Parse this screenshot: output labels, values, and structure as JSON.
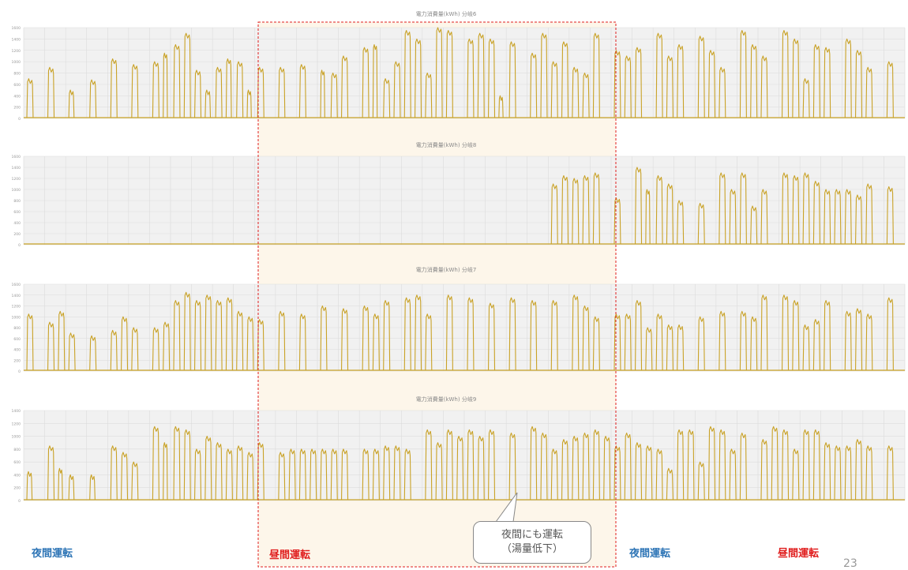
{
  "colors": {
    "series": "#c9a227",
    "night": "#2e75b6",
    "day": "#e01e1e",
    "highlight_border": "#e01e1e",
    "highlight_fill": "#fdf6ea",
    "plot_bg": "#f1f1f1",
    "grid": "#dcdcdc"
  },
  "chart_data": [
    {
      "type": "area",
      "title": "電力消費量(kWh) 分岐6",
      "ylim": [
        0,
        1600
      ],
      "yticks": [
        0,
        200,
        400,
        600,
        800,
        1000,
        1200,
        1400,
        1600
      ],
      "pulses": [
        [
          0.0,
          0.3,
          700
        ],
        [
          1.0,
          0.3,
          900
        ],
        [
          2.0,
          0.25,
          500
        ],
        [
          3.0,
          0.3,
          680
        ],
        [
          4.0,
          0.3,
          1050
        ],
        [
          5.0,
          0.3,
          950
        ],
        [
          6.0,
          0.3,
          1000
        ],
        [
          6.5,
          0.2,
          1150
        ],
        [
          7.0,
          0.3,
          1300
        ],
        [
          7.5,
          0.3,
          1500
        ],
        [
          8.0,
          0.3,
          850
        ],
        [
          8.5,
          0.25,
          500
        ],
        [
          9.0,
          0.3,
          900
        ],
        [
          9.5,
          0.25,
          1050
        ],
        [
          10.0,
          0.3,
          1000
        ],
        [
          10.5,
          0.2,
          500
        ],
        [
          11.0,
          0.3,
          900
        ],
        [
          12.0,
          0.3,
          900
        ],
        [
          13.0,
          0.3,
          950
        ],
        [
          14.0,
          0.2,
          850
        ],
        [
          14.5,
          0.3,
          800
        ],
        [
          15.0,
          0.3,
          1100
        ],
        [
          16.0,
          0.3,
          1250
        ],
        [
          16.5,
          0.2,
          1300
        ],
        [
          17.0,
          0.3,
          700
        ],
        [
          17.5,
          0.3,
          1000
        ],
        [
          18.0,
          0.3,
          1550
        ],
        [
          18.5,
          0.3,
          1400
        ],
        [
          19.0,
          0.3,
          800
        ],
        [
          19.5,
          0.3,
          1600
        ],
        [
          20.0,
          0.3,
          1550
        ],
        [
          21.0,
          0.3,
          1400
        ],
        [
          21.5,
          0.3,
          1500
        ],
        [
          22.0,
          0.3,
          1400
        ],
        [
          22.5,
          0.2,
          400
        ],
        [
          23.0,
          0.3,
          1350
        ],
        [
          24.0,
          0.3,
          1150
        ],
        [
          24.5,
          0.3,
          1500
        ],
        [
          25.0,
          0.3,
          1000
        ],
        [
          25.5,
          0.3,
          1350
        ],
        [
          26.0,
          0.3,
          900
        ],
        [
          26.5,
          0.3,
          800
        ],
        [
          27.0,
          0.3,
          1500
        ],
        [
          28.0,
          0.3,
          1200
        ],
        [
          28.5,
          0.3,
          1100
        ],
        [
          29.0,
          0.3,
          1250
        ],
        [
          30.0,
          0.3,
          1500
        ],
        [
          30.5,
          0.3,
          1100
        ],
        [
          31.0,
          0.3,
          1300
        ],
        [
          32.0,
          0.3,
          1450
        ],
        [
          32.5,
          0.3,
          1200
        ],
        [
          33.0,
          0.3,
          900
        ],
        [
          34.0,
          0.3,
          1550
        ],
        [
          34.5,
          0.3,
          1300
        ],
        [
          35.0,
          0.3,
          1100
        ],
        [
          36.0,
          0.3,
          1550
        ],
        [
          36.5,
          0.3,
          1400
        ],
        [
          37.0,
          0.3,
          700
        ],
        [
          37.5,
          0.3,
          1300
        ],
        [
          38.0,
          0.3,
          1250
        ],
        [
          39.0,
          0.3,
          1400
        ],
        [
          39.5,
          0.3,
          1200
        ],
        [
          40.0,
          0.3,
          900
        ],
        [
          41.0,
          0.3,
          1000
        ]
      ]
    },
    {
      "type": "area",
      "title": "電力消費量(kWh) 分岐8",
      "ylim": [
        0,
        1600
      ],
      "yticks": [
        0,
        200,
        400,
        600,
        800,
        1000,
        1200,
        1400,
        1600
      ],
      "pulses": [
        [
          25.0,
          0.3,
          1100
        ],
        [
          25.5,
          0.3,
          1250
        ],
        [
          26.0,
          0.3,
          1200
        ],
        [
          26.5,
          0.3,
          1250
        ],
        [
          27.0,
          0.3,
          1300
        ],
        [
          28.0,
          0.3,
          850
        ],
        [
          29.0,
          0.3,
          1400
        ],
        [
          29.5,
          0.2,
          1000
        ],
        [
          30.0,
          0.3,
          1250
        ],
        [
          30.5,
          0.3,
          1100
        ],
        [
          31.0,
          0.3,
          800
        ],
        [
          32.0,
          0.3,
          750
        ],
        [
          33.0,
          0.3,
          1300
        ],
        [
          33.5,
          0.3,
          1000
        ],
        [
          34.0,
          0.3,
          1300
        ],
        [
          34.5,
          0.3,
          700
        ],
        [
          35.0,
          0.3,
          1000
        ],
        [
          36.0,
          0.3,
          1300
        ],
        [
          36.5,
          0.3,
          1250
        ],
        [
          37.0,
          0.3,
          1300
        ],
        [
          37.5,
          0.3,
          1150
        ],
        [
          38.0,
          0.3,
          1000
        ],
        [
          38.5,
          0.3,
          1000
        ],
        [
          39.0,
          0.3,
          1000
        ],
        [
          39.5,
          0.3,
          900
        ],
        [
          40.0,
          0.3,
          1100
        ],
        [
          41.0,
          0.3,
          1050
        ]
      ]
    },
    {
      "type": "area",
      "title": "電力消費量(kWh) 分岐7",
      "ylim": [
        0,
        1600
      ],
      "yticks": [
        0,
        200,
        400,
        600,
        800,
        1000,
        1200,
        1400,
        1600
      ],
      "pulses": [
        [
          0.0,
          0.3,
          1050
        ],
        [
          1.0,
          0.3,
          900
        ],
        [
          1.5,
          0.3,
          1100
        ],
        [
          2.0,
          0.3,
          700
        ],
        [
          3.0,
          0.3,
          650
        ],
        [
          4.0,
          0.3,
          750
        ],
        [
          4.5,
          0.3,
          1000
        ],
        [
          5.0,
          0.3,
          800
        ],
        [
          6.0,
          0.3,
          800
        ],
        [
          6.5,
          0.3,
          900
        ],
        [
          7.0,
          0.3,
          1300
        ],
        [
          7.5,
          0.3,
          1450
        ],
        [
          8.0,
          0.3,
          1300
        ],
        [
          8.5,
          0.3,
          1400
        ],
        [
          9.0,
          0.3,
          1300
        ],
        [
          9.5,
          0.3,
          1350
        ],
        [
          10.0,
          0.3,
          1100
        ],
        [
          10.5,
          0.3,
          1000
        ],
        [
          11.0,
          0.3,
          950
        ],
        [
          12.0,
          0.3,
          1100
        ],
        [
          13.0,
          0.3,
          1050
        ],
        [
          14.0,
          0.3,
          1200
        ],
        [
          15.0,
          0.3,
          1150
        ],
        [
          16.0,
          0.3,
          1200
        ],
        [
          16.5,
          0.3,
          1050
        ],
        [
          17.0,
          0.3,
          1300
        ],
        [
          18.0,
          0.3,
          1350
        ],
        [
          18.5,
          0.3,
          1400
        ],
        [
          19.0,
          0.3,
          1050
        ],
        [
          20.0,
          0.3,
          1400
        ],
        [
          21.0,
          0.3,
          1350
        ],
        [
          22.0,
          0.3,
          1250
        ],
        [
          23.0,
          0.3,
          1350
        ],
        [
          24.0,
          0.3,
          1300
        ],
        [
          25.0,
          0.3,
          1300
        ],
        [
          26.0,
          0.3,
          1400
        ],
        [
          26.5,
          0.3,
          1200
        ],
        [
          27.0,
          0.3,
          1000
        ],
        [
          28.0,
          0.3,
          1050
        ],
        [
          28.5,
          0.3,
          1050
        ],
        [
          29.0,
          0.3,
          1300
        ],
        [
          29.5,
          0.3,
          800
        ],
        [
          30.0,
          0.3,
          1050
        ],
        [
          30.5,
          0.3,
          850
        ],
        [
          31.0,
          0.3,
          850
        ],
        [
          32.0,
          0.3,
          1000
        ],
        [
          33.0,
          0.3,
          1100
        ],
        [
          34.0,
          0.3,
          1100
        ],
        [
          34.5,
          0.3,
          1000
        ],
        [
          35.0,
          0.3,
          1400
        ],
        [
          36.0,
          0.3,
          1400
        ],
        [
          36.5,
          0.3,
          1300
        ],
        [
          37.0,
          0.3,
          850
        ],
        [
          37.5,
          0.3,
          950
        ],
        [
          38.0,
          0.3,
          1300
        ],
        [
          39.0,
          0.3,
          1100
        ],
        [
          39.5,
          0.3,
          1150
        ],
        [
          40.0,
          0.3,
          1050
        ],
        [
          41.0,
          0.3,
          1350
        ]
      ]
    },
    {
      "type": "area",
      "title": "電力消費量(kWh) 分岐9",
      "ylim": [
        0,
        1400
      ],
      "yticks": [
        0,
        200,
        400,
        600,
        800,
        1000,
        1200,
        1400
      ],
      "pulses": [
        [
          0.0,
          0.25,
          450
        ],
        [
          1.0,
          0.3,
          850
        ],
        [
          1.5,
          0.2,
          500
        ],
        [
          2.0,
          0.25,
          400
        ],
        [
          3.0,
          0.25,
          400
        ],
        [
          4.0,
          0.3,
          850
        ],
        [
          4.5,
          0.3,
          750
        ],
        [
          5.0,
          0.3,
          600
        ],
        [
          6.0,
          0.3,
          1150
        ],
        [
          6.5,
          0.2,
          900
        ],
        [
          7.0,
          0.3,
          1150
        ],
        [
          7.5,
          0.3,
          1100
        ],
        [
          8.0,
          0.3,
          800
        ],
        [
          8.5,
          0.3,
          1000
        ],
        [
          9.0,
          0.3,
          900
        ],
        [
          9.5,
          0.3,
          800
        ],
        [
          10.0,
          0.3,
          850
        ],
        [
          10.5,
          0.3,
          750
        ],
        [
          11.0,
          0.3,
          900
        ],
        [
          12.0,
          0.3,
          750
        ],
        [
          12.5,
          0.3,
          800
        ],
        [
          13.0,
          0.3,
          800
        ],
        [
          13.5,
          0.3,
          800
        ],
        [
          14.0,
          0.3,
          800
        ],
        [
          14.5,
          0.3,
          800
        ],
        [
          15.0,
          0.3,
          800
        ],
        [
          16.0,
          0.3,
          800
        ],
        [
          16.5,
          0.3,
          800
        ],
        [
          17.0,
          0.3,
          850
        ],
        [
          17.5,
          0.3,
          850
        ],
        [
          18.0,
          0.3,
          800
        ],
        [
          19.0,
          0.3,
          1100
        ],
        [
          19.5,
          0.3,
          900
        ],
        [
          20.0,
          0.3,
          1100
        ],
        [
          20.5,
          0.3,
          1000
        ],
        [
          21.0,
          0.3,
          1100
        ],
        [
          21.5,
          0.3,
          1000
        ],
        [
          22.0,
          0.3,
          1100
        ],
        [
          23.0,
          0.3,
          1050
        ],
        [
          24.0,
          0.3,
          1150
        ],
        [
          24.5,
          0.3,
          1050
        ],
        [
          25.0,
          0.3,
          800
        ],
        [
          25.5,
          0.3,
          950
        ],
        [
          26.0,
          0.3,
          1000
        ],
        [
          26.5,
          0.3,
          1050
        ],
        [
          27.0,
          0.3,
          1100
        ],
        [
          27.5,
          0.3,
          1000
        ],
        [
          28.0,
          0.3,
          850
        ],
        [
          28.5,
          0.3,
          1050
        ],
        [
          29.0,
          0.3,
          900
        ],
        [
          29.5,
          0.3,
          850
        ],
        [
          30.0,
          0.3,
          800
        ],
        [
          30.5,
          0.3,
          500
        ],
        [
          31.0,
          0.3,
          1100
        ],
        [
          31.5,
          0.3,
          1100
        ],
        [
          32.0,
          0.3,
          600
        ],
        [
          32.5,
          0.3,
          1150
        ],
        [
          33.0,
          0.3,
          1100
        ],
        [
          33.5,
          0.3,
          800
        ],
        [
          34.0,
          0.3,
          1050
        ],
        [
          35.0,
          0.3,
          950
        ],
        [
          35.5,
          0.3,
          1150
        ],
        [
          36.0,
          0.3,
          1100
        ],
        [
          36.5,
          0.3,
          800
        ],
        [
          37.0,
          0.3,
          1100
        ],
        [
          37.5,
          0.3,
          1100
        ],
        [
          38.0,
          0.3,
          900
        ],
        [
          38.5,
          0.3,
          850
        ],
        [
          39.0,
          0.3,
          850
        ],
        [
          39.5,
          0.3,
          950
        ],
        [
          40.0,
          0.3,
          850
        ],
        [
          41.0,
          0.3,
          850
        ]
      ]
    }
  ],
  "labels": {
    "night_1": "夜間運転",
    "day_1": "昼間運転",
    "night_2": "夜間運転",
    "day_2": "昼間運転",
    "callout_line1": "夜間にも運転",
    "callout_line2": "（湯量低下）"
  },
  "page_number": "23"
}
